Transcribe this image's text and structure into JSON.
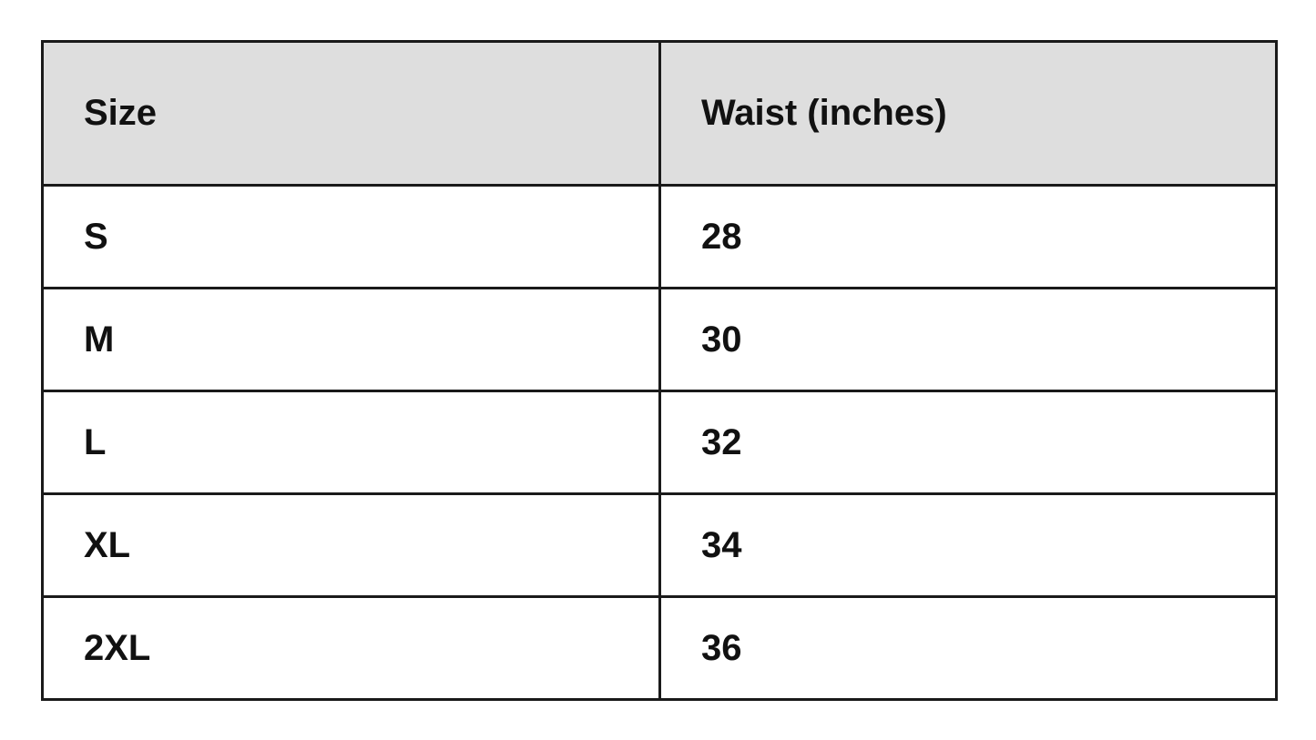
{
  "table": {
    "headers": [
      "Size",
      "Waist (inches)"
    ],
    "rows": [
      [
        "S",
        "28"
      ],
      [
        "M",
        "30"
      ],
      [
        "L",
        "32"
      ],
      [
        "XL",
        "34"
      ],
      [
        "2XL",
        "36"
      ]
    ],
    "header_bg": "#dedede"
  }
}
